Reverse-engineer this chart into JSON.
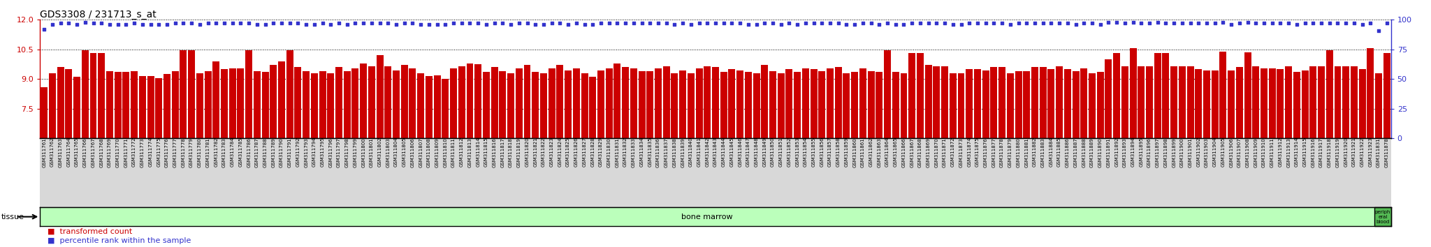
{
  "title": "GDS3308 / 231713_s_at",
  "ylim_left": [
    6,
    12
  ],
  "ylim_right": [
    0,
    100
  ],
  "yticks_left": [
    6,
    7.5,
    9,
    10.5,
    12
  ],
  "yticks_right": [
    0,
    25,
    50,
    75,
    100
  ],
  "bar_color": "#cc0000",
  "dot_color": "#3333cc",
  "tissue_color_bone": "#bbffbb",
  "tissue_color_peripheral": "#55bb55",
  "background_color": "#ffffff",
  "grid_color": "#000000",
  "title_color": "#000000",
  "axis_color_left": "#cc0000",
  "axis_color_right": "#3333cc",
  "label_bg_color": "#d8d8d8",
  "legend_labels": [
    "transformed count",
    "percentile rank within the sample"
  ],
  "tissue_label": "bone marrow",
  "tissue_label2": "periph\neral\nblood",
  "tissue_row_label": "tissue",
  "samples": [
    "GSM311761",
    "GSM311762",
    "GSM311763",
    "GSM311764",
    "GSM311765",
    "GSM311766",
    "GSM311767",
    "GSM311768",
    "GSM311769",
    "GSM311770",
    "GSM311771",
    "GSM311772",
    "GSM311773",
    "GSM311774",
    "GSM311775",
    "GSM311776",
    "GSM311777",
    "GSM311778",
    "GSM311779",
    "GSM311780",
    "GSM311781",
    "GSM311782",
    "GSM311783",
    "GSM311784",
    "GSM311785",
    "GSM311786",
    "GSM311787",
    "GSM311788",
    "GSM311789",
    "GSM311790",
    "GSM311791",
    "GSM311792",
    "GSM311793",
    "GSM311794",
    "GSM311795",
    "GSM311796",
    "GSM311797",
    "GSM311798",
    "GSM311799",
    "GSM311800",
    "GSM311801",
    "GSM311802",
    "GSM311803",
    "GSM311804",
    "GSM311805",
    "GSM311806",
    "GSM311807",
    "GSM311808",
    "GSM311809",
    "GSM311810",
    "GSM311811",
    "GSM311812",
    "GSM311813",
    "GSM311814",
    "GSM311815",
    "GSM311816",
    "GSM311817",
    "GSM311818",
    "GSM311819",
    "GSM311820",
    "GSM311821",
    "GSM311822",
    "GSM311823",
    "GSM311824",
    "GSM311825",
    "GSM311826",
    "GSM311827",
    "GSM311828",
    "GSM311829",
    "GSM311830",
    "GSM311831",
    "GSM311832",
    "GSM311833",
    "GSM311834",
    "GSM311835",
    "GSM311836",
    "GSM311837",
    "GSM311838",
    "GSM311839",
    "GSM311840",
    "GSM311841",
    "GSM311842",
    "GSM311843",
    "GSM311844",
    "GSM311845",
    "GSM311846",
    "GSM311847",
    "GSM311848",
    "GSM311849",
    "GSM311850",
    "GSM311851",
    "GSM311852",
    "GSM311853",
    "GSM311854",
    "GSM311855",
    "GSM311856",
    "GSM311857",
    "GSM311858",
    "GSM311859",
    "GSM311860",
    "GSM311861",
    "GSM311862",
    "GSM311863",
    "GSM311864",
    "GSM311865",
    "GSM311866",
    "GSM311867",
    "GSM311868",
    "GSM311869",
    "GSM311870",
    "GSM311871",
    "GSM311872",
    "GSM311873",
    "GSM311874",
    "GSM311875",
    "GSM311876",
    "GSM311877",
    "GSM311878",
    "GSM311879",
    "GSM311880",
    "GSM311881",
    "GSM311882",
    "GSM311883",
    "GSM311884",
    "GSM311885",
    "GSM311886",
    "GSM311887",
    "GSM311888",
    "GSM311889",
    "GSM311890",
    "GSM311891",
    "GSM311892",
    "GSM311893",
    "GSM311894",
    "GSM311895",
    "GSM311896",
    "GSM311897",
    "GSM311898",
    "GSM311899",
    "GSM311900",
    "GSM311901",
    "GSM311902",
    "GSM311903",
    "GSM311904",
    "GSM311905",
    "GSM311906",
    "GSM311907",
    "GSM311908",
    "GSM311909",
    "GSM311910",
    "GSM311911",
    "GSM311912",
    "GSM311913",
    "GSM311914",
    "GSM311915",
    "GSM311916",
    "GSM311917",
    "GSM311918",
    "GSM311919",
    "GSM311920",
    "GSM311921",
    "GSM311922",
    "GSM311923",
    "GSM311831",
    "GSM311878"
  ],
  "bar_values": [
    8.6,
    9.3,
    9.6,
    9.5,
    9.1,
    10.47,
    10.3,
    10.3,
    9.4,
    9.35,
    9.35,
    9.4,
    9.15,
    9.15,
    9.05,
    9.25,
    9.4,
    10.47,
    10.47,
    9.3,
    9.4,
    9.9,
    9.5,
    9.55,
    9.55,
    10.47,
    9.4,
    9.35,
    9.7,
    9.9,
    10.47,
    9.6,
    9.4,
    9.3,
    9.4,
    9.3,
    9.6,
    9.4,
    9.55,
    9.8,
    9.65,
    10.2,
    9.65,
    9.45,
    9.7,
    9.55,
    9.3,
    9.15,
    9.2,
    9.0,
    9.55,
    9.65,
    9.8,
    9.75,
    9.35,
    9.6,
    9.4,
    9.3,
    9.55,
    9.7,
    9.35,
    9.3,
    9.55,
    9.7,
    9.45,
    9.55,
    9.3,
    9.1,
    9.45,
    9.55,
    9.8,
    9.6,
    9.55,
    9.4,
    9.4,
    9.55,
    9.65,
    9.3,
    9.45,
    9.3,
    9.55,
    9.65,
    9.6,
    9.35,
    9.5,
    9.45,
    9.35,
    9.3,
    9.7,
    9.4,
    9.3,
    9.5,
    9.35,
    9.55,
    9.5,
    9.4,
    9.55,
    9.6,
    9.3,
    9.35,
    9.55,
    9.4,
    9.35,
    10.47,
    9.35,
    9.3,
    10.3,
    10.3,
    9.7,
    9.65,
    9.65,
    9.3,
    9.3,
    9.5,
    9.5,
    9.45,
    9.6,
    9.6,
    9.3,
    9.4,
    9.4,
    9.6,
    9.6,
    9.5,
    9.65,
    9.5,
    9.4,
    9.55,
    9.3,
    9.35,
    10.0,
    10.3,
    9.65,
    10.55,
    9.65,
    9.65,
    10.3,
    10.3,
    9.65,
    9.65,
    9.65,
    9.5,
    9.45,
    9.45,
    10.4,
    9.45,
    9.6,
    10.35,
    9.65,
    9.55,
    9.55,
    9.5,
    9.65,
    9.35,
    9.45,
    9.65,
    9.65,
    10.47,
    9.65,
    9.65,
    9.65,
    9.5,
    10.55,
    9.3,
    10.3
  ],
  "dot_values": [
    92,
    96,
    97,
    97,
    96,
    98,
    97,
    97,
    96,
    96,
    96,
    97,
    96,
    96,
    96,
    96,
    97,
    97,
    97,
    96,
    97,
    97,
    97,
    97,
    97,
    97,
    96,
    96,
    97,
    97,
    97,
    97,
    96,
    96,
    97,
    96,
    97,
    96,
    97,
    97,
    97,
    97,
    97,
    96,
    97,
    97,
    96,
    96,
    96,
    96,
    97,
    97,
    97,
    97,
    96,
    97,
    97,
    96,
    97,
    97,
    96,
    96,
    97,
    97,
    96,
    97,
    96,
    96,
    97,
    97,
    97,
    97,
    97,
    97,
    97,
    97,
    97,
    96,
    97,
    96,
    97,
    97,
    97,
    97,
    97,
    97,
    96,
    96,
    97,
    97,
    96,
    97,
    96,
    97,
    97,
    97,
    97,
    97,
    96,
    96,
    97,
    97,
    96,
    97,
    96,
    96,
    97,
    97,
    97,
    97,
    97,
    96,
    96,
    97,
    97,
    97,
    97,
    97,
    96,
    97,
    97,
    97,
    97,
    97,
    97,
    97,
    96,
    97,
    97,
    96,
    98,
    98,
    97,
    98,
    97,
    97,
    98,
    97,
    97,
    97,
    97,
    97,
    97,
    97,
    98,
    96,
    97,
    98,
    97,
    97,
    97,
    97,
    97,
    96,
    97,
    97,
    97,
    97,
    97,
    97,
    97,
    96,
    97,
    91,
    97
  ],
  "bone_marrow_count": 163,
  "peripheral_blood_count": 2
}
